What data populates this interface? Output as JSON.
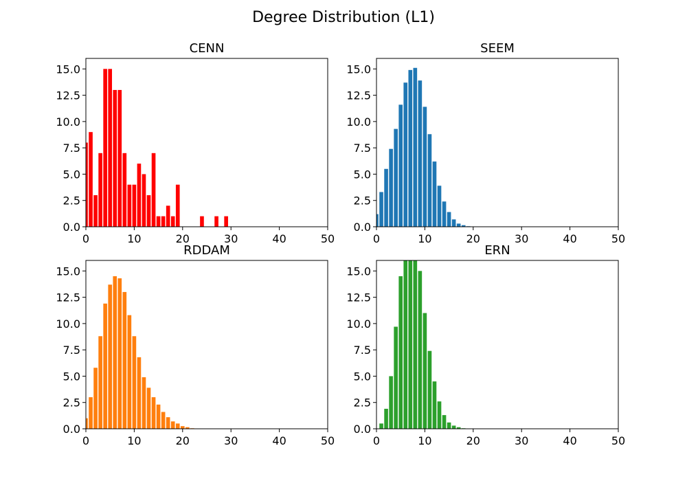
{
  "figure": {
    "title": "Degree Distribution (L1)"
  },
  "chart_data": [
    {
      "type": "bar",
      "title": "CENN",
      "color": "#ff0000",
      "xlim": [
        0,
        50
      ],
      "ylim": [
        0,
        16
      ],
      "xticks": [
        "0",
        "10",
        "20",
        "30",
        "40",
        "50"
      ],
      "yticks": [
        "0.0",
        "2.5",
        "5.0",
        "7.5",
        "10.0",
        "12.5",
        "15.0"
      ],
      "x": [
        0,
        1,
        2,
        3,
        4,
        5,
        6,
        7,
        8,
        9,
        10,
        11,
        12,
        13,
        14,
        15,
        16,
        17,
        18,
        19,
        20,
        21,
        22,
        23,
        24,
        25,
        26,
        27,
        28,
        29
      ],
      "values": [
        8,
        9,
        3,
        7,
        15,
        15,
        13,
        13,
        7,
        4,
        4,
        6,
        5,
        3,
        7,
        1,
        1,
        2,
        1,
        4,
        0,
        0,
        0,
        0,
        1,
        0,
        0,
        1,
        0,
        1
      ]
    },
    {
      "type": "bar",
      "title": "SEEM",
      "color": "#1f77b4",
      "xlim": [
        0,
        50
      ],
      "ylim": [
        0,
        16
      ],
      "xticks": [
        "0",
        "10",
        "20",
        "30",
        "40",
        "50"
      ],
      "yticks": [
        "0.0",
        "2.5",
        "5.0",
        "7.5",
        "10.0",
        "12.5",
        "15.0"
      ],
      "x": [
        0,
        1,
        2,
        3,
        4,
        5,
        6,
        7,
        8,
        9,
        10,
        11,
        12,
        13,
        14,
        15,
        16,
        17,
        18,
        19
      ],
      "values": [
        1.2,
        3.3,
        5.5,
        7.4,
        9.3,
        11.6,
        13.7,
        14.9,
        15.1,
        13.9,
        11.4,
        8.8,
        6.2,
        3.9,
        2.4,
        1.4,
        0.7,
        0.3,
        0.15,
        0.05
      ]
    },
    {
      "type": "bar",
      "title": "RDDAM",
      "color": "#ff7f0e",
      "xlim": [
        0,
        50
      ],
      "ylim": [
        0,
        16
      ],
      "xticks": [
        "0",
        "10",
        "20",
        "30",
        "40",
        "50"
      ],
      "yticks": [
        "0.0",
        "2.5",
        "5.0",
        "7.5",
        "10.0",
        "12.5",
        "15.0"
      ],
      "x": [
        0,
        1,
        2,
        3,
        4,
        5,
        6,
        7,
        8,
        9,
        10,
        11,
        12,
        13,
        14,
        15,
        16,
        17,
        18,
        19,
        20,
        21,
        22
      ],
      "values": [
        1.0,
        3.0,
        5.8,
        8.8,
        11.9,
        13.7,
        14.5,
        14.3,
        13.0,
        10.8,
        8.8,
        6.8,
        4.9,
        3.9,
        3.0,
        2.3,
        1.6,
        1.1,
        0.7,
        0.5,
        0.25,
        0.15,
        0.05
      ]
    },
    {
      "type": "bar",
      "title": "ERN",
      "color": "#2ca02c",
      "xlim": [
        0,
        50
      ],
      "ylim": [
        0,
        16
      ],
      "xticks": [
        "0",
        "10",
        "20",
        "30",
        "40",
        "50"
      ],
      "yticks": [
        "0.0",
        "2.5",
        "5.0",
        "7.5",
        "10.0",
        "12.5",
        "15.0"
      ],
      "x": [
        1,
        2,
        3,
        4,
        5,
        6,
        7,
        8,
        9,
        10,
        11,
        12,
        13,
        14,
        15,
        16,
        17,
        18
      ],
      "values": [
        0.5,
        1.9,
        5.0,
        9.7,
        14.5,
        16.5,
        17.0,
        16.3,
        15.0,
        11.0,
        7.4,
        4.5,
        2.6,
        1.3,
        0.6,
        0.3,
        0.15,
        0.05
      ]
    }
  ]
}
